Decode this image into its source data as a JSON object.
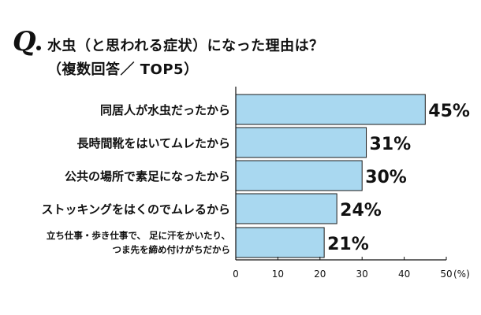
{
  "title": "水虫（と思われる症状）になった理由は？",
  "subtitle": "（複数回答／ TOP5）",
  "q_mark": "Q",
  "chart_data": {
    "type": "bar",
    "orientation": "horizontal",
    "title": "水虫（と思われる症状）になった理由は？",
    "subtitle": "（複数回答／ TOP5）",
    "categories": [
      [
        "同居人が水虫だったから"
      ],
      [
        "長時間靴をはいてムレたから"
      ],
      [
        "公共の場所で素足になったから"
      ],
      [
        "ストッキングをはくのでムレるから"
      ],
      [
        "立ち仕事・歩き仕事で、 足に汗をかいたり、",
        "つま先を締め付けがちだから"
      ]
    ],
    "values": [
      45,
      31,
      30,
      24,
      21
    ],
    "value_labels": [
      "45%",
      "31%",
      "30%",
      "24%",
      "21%"
    ],
    "xlim": [
      0,
      50
    ],
    "xticks": [
      0,
      10,
      20,
      30,
      40,
      50
    ],
    "xtick_labels": [
      "0",
      "10",
      "20",
      "30",
      "40",
      "50"
    ],
    "x_unit": "(%)",
    "grid": false,
    "bar_color": "#a9d8f0",
    "bar_edge_color": "#1a1a1a"
  }
}
